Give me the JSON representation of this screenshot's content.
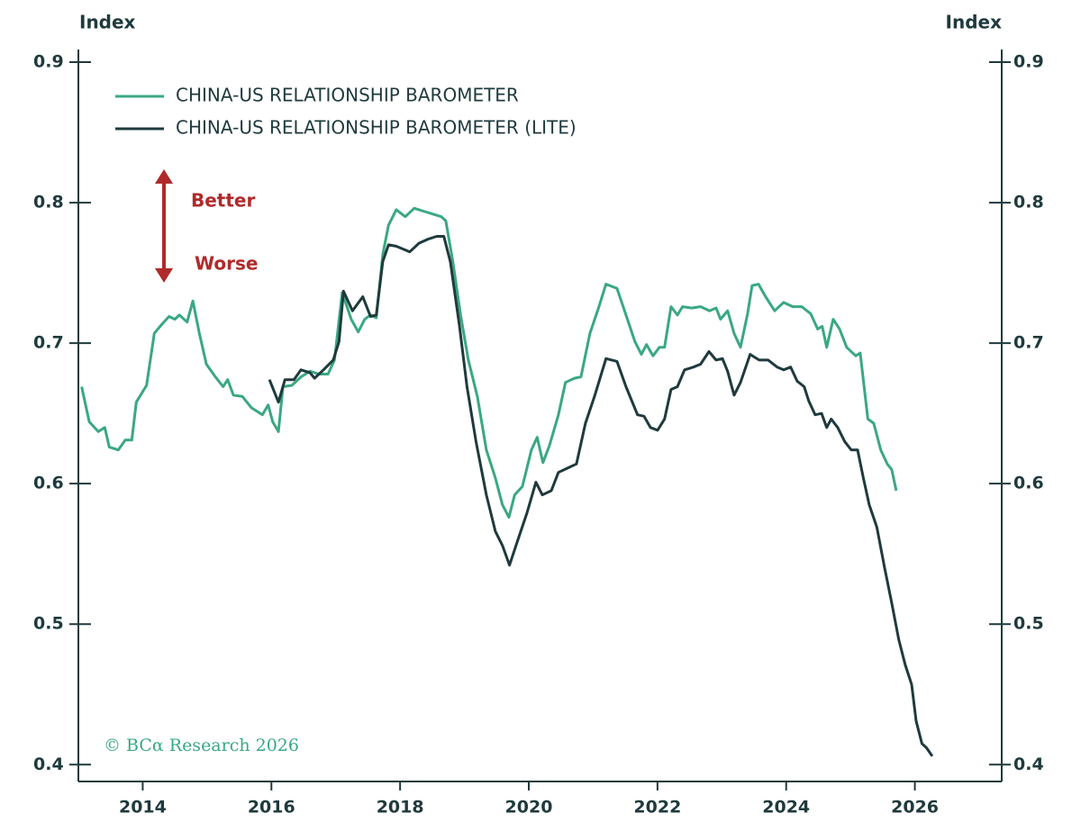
{
  "chart_data": {
    "type": "line",
    "y_label": "Index",
    "y2_label": "Index",
    "annotations": [
      "Better",
      "Worse",
      "© BCα Research 2026"
    ],
    "xlim": [
      2013.0,
      2027.35
    ],
    "xticks": [
      2014,
      2016,
      2018,
      2020,
      2022,
      2024,
      2026
    ],
    "ylim": [
      0.388,
      0.909
    ],
    "yticks": [
      0.4,
      0.5,
      0.6,
      0.7,
      0.8,
      0.9
    ],
    "y2lim": [
      0.388,
      0.909
    ],
    "y2ticks": [
      0.4,
      0.5,
      0.6,
      0.7,
      0.8,
      0.9
    ],
    "series": [
      {
        "name": "CHINA-US RELATIONSHIP BAROMETER",
        "color": "#3aa881",
        "x": [
          2013.05,
          2013.17,
          2013.31,
          2013.41,
          2013.48,
          2013.62,
          2013.73,
          2013.83,
          2013.9,
          2014.06,
          2014.18,
          2014.29,
          2014.41,
          2014.5,
          2014.57,
          2014.69,
          2014.78,
          2014.88,
          2014.99,
          2015.13,
          2015.25,
          2015.32,
          2015.41,
          2015.55,
          2015.69,
          2015.86,
          2015.95,
          2016.02,
          2016.11,
          2016.18,
          2016.32,
          2016.46,
          2016.6,
          2016.74,
          2016.88,
          2016.98,
          2017.1,
          2017.24,
          2017.35,
          2017.45,
          2017.54,
          2017.63,
          2017.73,
          2017.82,
          2017.94,
          2018.08,
          2018.22,
          2018.36,
          2018.5,
          2018.64,
          2018.71,
          2018.82,
          2018.94,
          2019.06,
          2019.2,
          2019.34,
          2019.48,
          2019.59,
          2019.69,
          2019.78,
          2019.9,
          2020.04,
          2020.13,
          2020.22,
          2020.32,
          2020.46,
          2020.57,
          2020.71,
          2020.81,
          2020.95,
          2021.09,
          2021.2,
          2021.37,
          2021.51,
          2021.65,
          2021.75,
          2021.83,
          2021.93,
          2022.03,
          2022.11,
          2022.21,
          2022.31,
          2022.39,
          2022.53,
          2022.67,
          2022.81,
          2022.91,
          2022.98,
          2023.09,
          2023.19,
          2023.29,
          2023.4,
          2023.47,
          2023.57,
          2023.68,
          2023.82,
          2023.96,
          2024.1,
          2024.24,
          2024.38,
          2024.49,
          2024.56,
          2024.63,
          2024.73,
          2024.83,
          2024.94,
          2025.08,
          2025.15,
          2025.27,
          2025.36,
          2025.47,
          2025.57,
          2025.64,
          2025.71
        ],
        "values": [
          0.669,
          0.644,
          0.637,
          0.64,
          0.626,
          0.624,
          0.631,
          0.631,
          0.658,
          0.67,
          0.707,
          0.713,
          0.719,
          0.717,
          0.72,
          0.715,
          0.73,
          0.707,
          0.685,
          0.676,
          0.669,
          0.674,
          0.663,
          0.662,
          0.654,
          0.649,
          0.656,
          0.644,
          0.637,
          0.669,
          0.67,
          0.676,
          0.68,
          0.678,
          0.678,
          0.688,
          0.736,
          0.717,
          0.708,
          0.717,
          0.72,
          0.718,
          0.763,
          0.784,
          0.795,
          0.79,
          0.796,
          0.794,
          0.792,
          0.79,
          0.787,
          0.758,
          0.72,
          0.688,
          0.662,
          0.624,
          0.604,
          0.585,
          0.576,
          0.592,
          0.598,
          0.624,
          0.633,
          0.615,
          0.627,
          0.649,
          0.672,
          0.675,
          0.676,
          0.707,
          0.726,
          0.742,
          0.739,
          0.72,
          0.701,
          0.692,
          0.699,
          0.691,
          0.697,
          0.697,
          0.726,
          0.72,
          0.726,
          0.725,
          0.726,
          0.723,
          0.725,
          0.717,
          0.723,
          0.707,
          0.697,
          0.721,
          0.741,
          0.742,
          0.733,
          0.723,
          0.729,
          0.726,
          0.726,
          0.721,
          0.71,
          0.712,
          0.697,
          0.717,
          0.71,
          0.697,
          0.691,
          0.693,
          0.646,
          0.643,
          0.624,
          0.614,
          0.61,
          0.595
        ]
      },
      {
        "name": "CHINA-US RELATIONSHIP BAROMETER (LITE)",
        "color": "#1f3a3d",
        "x": [
          2015.97,
          2016.11,
          2016.21,
          2016.35,
          2016.46,
          2016.6,
          2016.67,
          2016.81,
          2016.96,
          2017.05,
          2017.12,
          2017.26,
          2017.42,
          2017.54,
          2017.63,
          2017.73,
          2017.82,
          2017.94,
          2018.15,
          2018.29,
          2018.43,
          2018.57,
          2018.68,
          2018.78,
          2018.92,
          2019.04,
          2019.18,
          2019.34,
          2019.48,
          2019.59,
          2019.7,
          2019.83,
          2019.97,
          2020.11,
          2020.21,
          2020.35,
          2020.46,
          2020.6,
          2020.74,
          2020.88,
          2021.02,
          2021.2,
          2021.37,
          2021.51,
          2021.69,
          2021.79,
          2021.89,
          2022.0,
          2022.11,
          2022.21,
          2022.31,
          2022.42,
          2022.56,
          2022.67,
          2022.8,
          2022.91,
          2023.01,
          2023.09,
          2023.19,
          2023.29,
          2023.44,
          2023.58,
          2023.72,
          2023.86,
          2023.96,
          2024.07,
          2024.17,
          2024.28,
          2024.35,
          2024.45,
          2024.55,
          2024.63,
          2024.7,
          2024.8,
          2024.91,
          2025.01,
          2025.11,
          2025.2,
          2025.29,
          2025.41,
          2025.53,
          2025.64,
          2025.75,
          2025.85,
          2025.95,
          2026.02,
          2026.11,
          2026.18,
          2026.27
        ],
        "values": [
          0.674,
          0.658,
          0.674,
          0.674,
          0.681,
          0.679,
          0.675,
          0.681,
          0.688,
          0.701,
          0.737,
          0.723,
          0.733,
          0.719,
          0.72,
          0.758,
          0.77,
          0.769,
          0.765,
          0.771,
          0.774,
          0.776,
          0.776,
          0.758,
          0.713,
          0.669,
          0.63,
          0.592,
          0.566,
          0.556,
          0.542,
          0.56,
          0.579,
          0.601,
          0.592,
          0.595,
          0.608,
          0.611,
          0.614,
          0.643,
          0.662,
          0.689,
          0.687,
          0.669,
          0.649,
          0.648,
          0.64,
          0.638,
          0.646,
          0.667,
          0.669,
          0.681,
          0.683,
          0.685,
          0.694,
          0.688,
          0.689,
          0.68,
          0.663,
          0.672,
          0.692,
          0.688,
          0.688,
          0.683,
          0.681,
          0.683,
          0.673,
          0.669,
          0.659,
          0.649,
          0.65,
          0.64,
          0.646,
          0.64,
          0.63,
          0.624,
          0.624,
          0.604,
          0.585,
          0.569,
          0.54,
          0.515,
          0.489,
          0.471,
          0.457,
          0.431,
          0.415,
          0.412,
          0.406
        ]
      }
    ]
  }
}
